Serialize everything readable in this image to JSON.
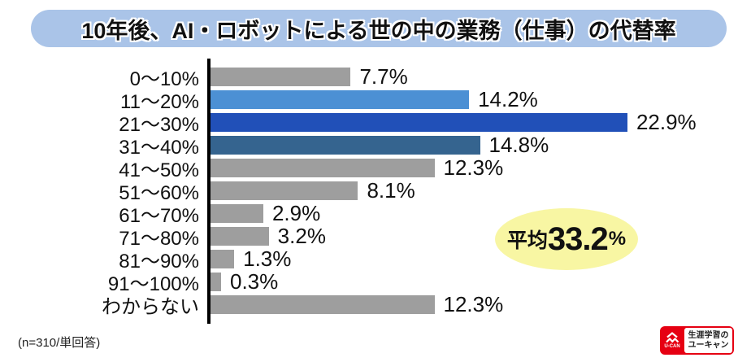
{
  "title": "10年後、AI・ロボットによる世の中の業務（仕事）の代替率",
  "note": "(n=310/単回答)",
  "average_badge": {
    "prefix": "平均",
    "value": "33.2",
    "suffix": "%"
  },
  "logo": {
    "brand": "U-CAN",
    "tagline_line1": "生涯学習の",
    "tagline_line2": "ユーキャン",
    "icon": "ucan-chevron-mark",
    "brand_red": "#e60012"
  },
  "colors": {
    "banner_bg": "#aac4e8",
    "bar_default": "#9e9e9e",
    "bar_highlight_light": "#4c90d4",
    "bar_highlight_strong": "#2150b8",
    "bar_highlight_mid": "#35648f",
    "average_badge_bg": "#f8f6a3",
    "axis": "#000000",
    "text": "#111111"
  },
  "chart_data": {
    "type": "bar",
    "orientation": "horizontal",
    "title": "10年後、AI・ロボットによる世の中の業務（仕事）の代替率",
    "categories": [
      "0〜10%",
      "11〜20%",
      "21〜30%",
      "31〜40%",
      "41〜50%",
      "51〜60%",
      "61〜70%",
      "71〜80%",
      "81〜90%",
      "91〜100%",
      "わからない"
    ],
    "values": [
      7.7,
      14.2,
      22.9,
      14.8,
      12.3,
      8.1,
      2.9,
      3.2,
      1.3,
      0.3,
      12.3
    ],
    "value_labels": [
      "7.7%",
      "14.2%",
      "22.9%",
      "14.8%",
      "12.3%",
      "8.1%",
      "2.9%",
      "3.2%",
      "1.3%",
      "0.3%",
      "12.3%"
    ],
    "bar_colors": [
      "#9e9e9e",
      "#4c90d4",
      "#2150b8",
      "#35648f",
      "#9e9e9e",
      "#9e9e9e",
      "#9e9e9e",
      "#9e9e9e",
      "#9e9e9e",
      "#9e9e9e",
      "#9e9e9e"
    ],
    "xlim": [
      0,
      25
    ],
    "grid": false,
    "legend": false,
    "average": 33.2,
    "annotations": [
      {
        "type": "ellipse-badge",
        "text": "平均33.2%"
      }
    ],
    "sample_note": "(n=310/単回答)"
  }
}
